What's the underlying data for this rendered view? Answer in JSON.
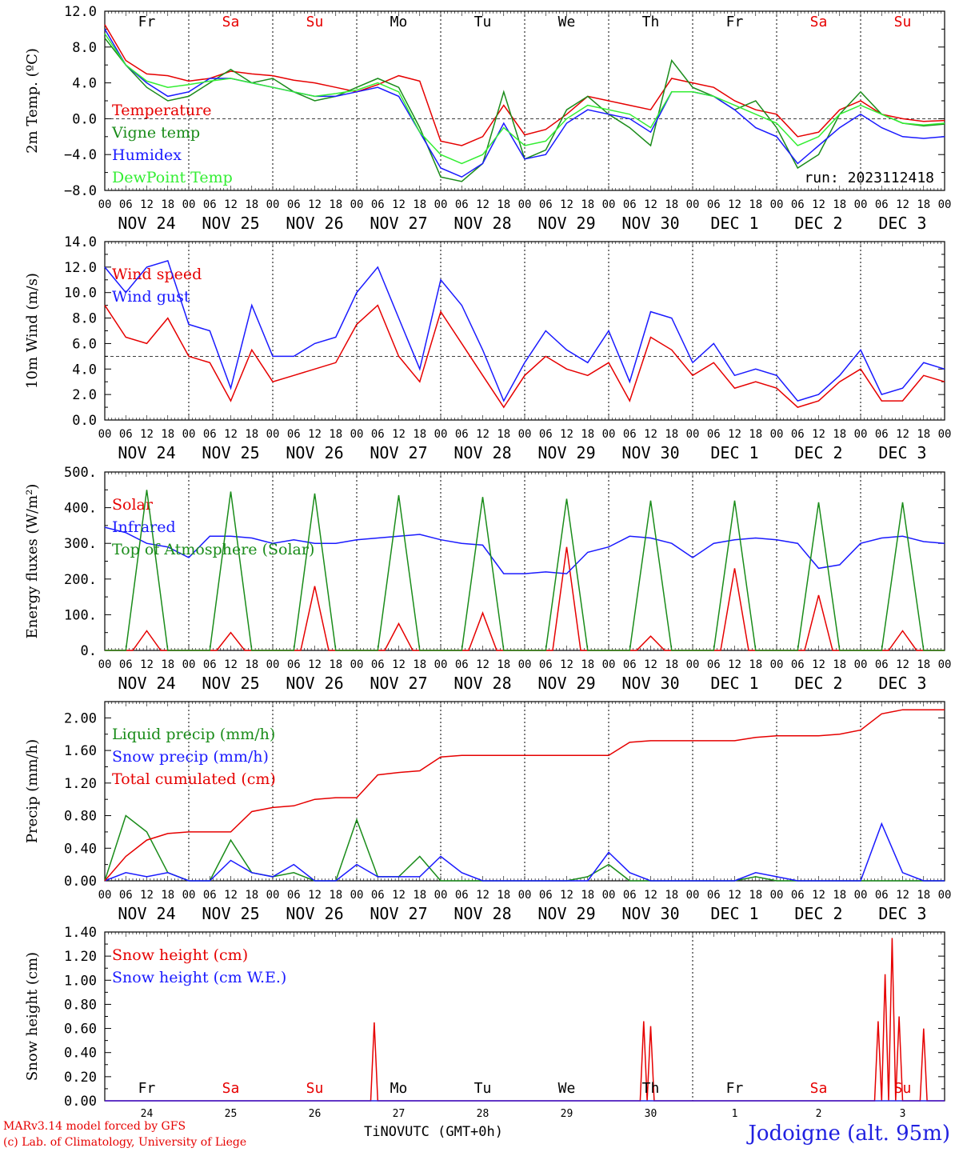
{
  "colors": {
    "red": "#e60000",
    "green": "#1a8c1a",
    "blue": "#1a1aff",
    "lightgreen": "#33ee33",
    "grid": "#000000"
  },
  "hour_ticks": [
    "00",
    "06",
    "12",
    "18"
  ],
  "date_labels": [
    "NOV 24",
    "NOV 25",
    "NOV 26",
    "NOV 27",
    "NOV 28",
    "NOV 29",
    "NOV 30",
    "DEC  1",
    "DEC  2",
    "DEC  3"
  ],
  "day_abbrev": [
    {
      "label": "Fr",
      "weekend": false
    },
    {
      "label": "Sa",
      "weekend": true
    },
    {
      "label": "Su",
      "weekend": true
    },
    {
      "label": "Mo",
      "weekend": false
    },
    {
      "label": "Tu",
      "weekend": false
    },
    {
      "label": "We",
      "weekend": false
    },
    {
      "label": "Th",
      "weekend": false
    },
    {
      "label": "Fr",
      "weekend": false
    },
    {
      "label": "Sa",
      "weekend": true
    },
    {
      "label": "Su",
      "weekend": true
    }
  ],
  "bottom_day_numbers": [
    "24",
    "25",
    "26",
    "27",
    "28",
    "29",
    "30",
    "1",
    "2",
    "3"
  ],
  "footer": {
    "model": "MARv3.14 model forced by GFS",
    "lab": "(c) Lab. of Climatology, University of Liege",
    "axis_title": "TiNOVUTC (GMT+0h)",
    "location": "Jodoigne (alt. 95m)"
  },
  "chart_data": [
    {
      "type": "line",
      "ylabel": "2m Temp. (ºC)",
      "ylim": [
        -8,
        12
      ],
      "yticks": [
        "12.0",
        "8.0",
        "4.0",
        "0.0",
        "−4.0",
        "−8.0"
      ],
      "ytick_values": [
        12,
        8,
        4,
        0,
        -4,
        -8
      ],
      "reference_line": 0,
      "annotation": "run: 2023112418",
      "x_hours": [
        0,
        6,
        12,
        18,
        24,
        30,
        36,
        42,
        48,
        54,
        60,
        66,
        72,
        78,
        84,
        90,
        96,
        102,
        108,
        114,
        120,
        126,
        132,
        138,
        144,
        150,
        156,
        162,
        168,
        174,
        180,
        186,
        192,
        198,
        204,
        210,
        216,
        222,
        228,
        234,
        240
      ],
      "series": [
        {
          "name": "Temperature",
          "color": "red",
          "values": [
            10.5,
            6.5,
            5.0,
            4.8,
            4.2,
            4.5,
            5.3,
            5.0,
            4.8,
            4.3,
            4.0,
            3.5,
            3.0,
            3.8,
            4.8,
            4.2,
            -2.5,
            -3.0,
            -2.0,
            1.5,
            -1.8,
            -1.2,
            0.5,
            2.5,
            2.0,
            1.5,
            1.0,
            4.5,
            4.0,
            3.5,
            2.0,
            1.0,
            0.5,
            -2.0,
            -1.5,
            1.0,
            2.0,
            0.5,
            0.0,
            -0.3,
            -0.2
          ]
        },
        {
          "name": "Vigne temp",
          "color": "green",
          "values": [
            9.0,
            6.0,
            3.5,
            2.0,
            2.5,
            4.0,
            5.5,
            4.0,
            4.5,
            3.0,
            2.0,
            2.5,
            3.5,
            4.5,
            3.5,
            -1.0,
            -6.5,
            -7.0,
            -5.0,
            3.0,
            -4.5,
            -3.5,
            1.0,
            2.5,
            0.5,
            -1.0,
            -3.0,
            6.5,
            3.5,
            2.5,
            1.0,
            2.0,
            -1.0,
            -5.5,
            -4.0,
            0.5,
            3.0,
            0.5,
            -0.5,
            -0.8,
            -0.6
          ]
        },
        {
          "name": "Humidex",
          "color": "blue",
          "values": [
            10.0,
            6.0,
            4.0,
            2.5,
            3.0,
            4.5,
            4.5,
            4.0,
            3.5,
            3.0,
            2.5,
            2.5,
            3.0,
            3.5,
            2.5,
            -1.5,
            -5.5,
            -6.5,
            -5.0,
            -0.5,
            -4.5,
            -4.0,
            -0.5,
            1.0,
            0.5,
            0.0,
            -1.5,
            3.0,
            3.0,
            2.5,
            1.0,
            -1.0,
            -2.0,
            -5.0,
            -3.0,
            -1.0,
            0.5,
            -1.0,
            -2.0,
            -2.2,
            -2.0
          ]
        },
        {
          "name": "DewPoint Temp",
          "color": "lightgreen",
          "values": [
            9.5,
            6.0,
            4.2,
            3.5,
            3.8,
            4.2,
            4.5,
            4.0,
            3.5,
            3.0,
            2.5,
            2.8,
            3.2,
            4.0,
            3.0,
            -1.5,
            -4.0,
            -5.0,
            -4.0,
            -1.0,
            -3.0,
            -2.5,
            0.0,
            1.5,
            1.0,
            0.5,
            -1.0,
            3.0,
            3.0,
            2.5,
            1.5,
            0.5,
            -0.5,
            -3.0,
            -2.0,
            0.5,
            1.5,
            0.5,
            -0.5,
            -0.7,
            -0.5
          ]
        }
      ]
    },
    {
      "type": "line",
      "ylabel": "10m Wind (m/s)",
      "ylim": [
        0,
        14
      ],
      "yticks": [
        "14.0",
        "12.0",
        "10.0",
        "8.0",
        "6.0",
        "4.0",
        "2.0",
        "0.0"
      ],
      "ytick_values": [
        14,
        12,
        10,
        8,
        6,
        4,
        2,
        0
      ],
      "reference_line": 5,
      "x_hours": [
        0,
        6,
        12,
        18,
        24,
        30,
        36,
        42,
        48,
        54,
        60,
        66,
        72,
        78,
        84,
        90,
        96,
        102,
        108,
        114,
        120,
        126,
        132,
        138,
        144,
        150,
        156,
        162,
        168,
        174,
        180,
        186,
        192,
        198,
        204,
        210,
        216,
        222,
        228,
        234,
        240
      ],
      "series": [
        {
          "name": "Wind speed",
          "color": "red",
          "values": [
            9.0,
            6.5,
            6.0,
            8.0,
            5.0,
            4.5,
            1.5,
            5.5,
            3.0,
            3.5,
            4.0,
            4.5,
            7.5,
            9.0,
            5.0,
            3.0,
            8.5,
            6.0,
            3.5,
            1.0,
            3.5,
            5.0,
            4.0,
            3.5,
            4.5,
            1.5,
            6.5,
            5.5,
            3.5,
            4.5,
            2.5,
            3.0,
            2.5,
            1.0,
            1.5,
            3.0,
            4.0,
            1.5,
            1.5,
            3.5,
            3.0
          ]
        },
        {
          "name": "Wind gust",
          "color": "blue",
          "values": [
            12.0,
            10.0,
            12.0,
            12.5,
            7.5,
            7.0,
            2.5,
            9.0,
            5.0,
            5.0,
            6.0,
            6.5,
            10.0,
            12.0,
            8.0,
            4.0,
            11.0,
            9.0,
            5.5,
            1.5,
            4.5,
            7.0,
            5.5,
            4.5,
            7.0,
            3.0,
            8.5,
            8.0,
            4.5,
            6.0,
            3.5,
            4.0,
            3.5,
            1.5,
            2.0,
            3.5,
            5.5,
            2.0,
            2.5,
            4.5,
            4.0
          ]
        }
      ]
    },
    {
      "type": "line",
      "ylabel": "Energy fluxes (W/m²)",
      "ylim": [
        0,
        500
      ],
      "yticks": [
        "500.",
        "400.",
        "300.",
        "200.",
        "100.",
        "0."
      ],
      "ytick_values": [
        500,
        400,
        300,
        200,
        100,
        0
      ],
      "x_hours": [
        0,
        6,
        12,
        18,
        24,
        30,
        36,
        42,
        48,
        54,
        60,
        66,
        72,
        78,
        84,
        90,
        96,
        102,
        108,
        114,
        120,
        126,
        132,
        138,
        144,
        150,
        156,
        162,
        168,
        174,
        180,
        186,
        192,
        198,
        204,
        210,
        216,
        222,
        228,
        234,
        240
      ],
      "series": [
        {
          "name": "Solar",
          "color": "red",
          "peaks": [
            55,
            50,
            180,
            75,
            105,
            290,
            40,
            230,
            155,
            55
          ],
          "peak_hour": 12
        },
        {
          "name": "Infrared",
          "color": "blue",
          "values": [
            345,
            330,
            300,
            290,
            260,
            320,
            320,
            315,
            300,
            310,
            300,
            300,
            310,
            315,
            320,
            325,
            310,
            300,
            295,
            215,
            215,
            220,
            215,
            275,
            290,
            320,
            315,
            300,
            260,
            300,
            310,
            315,
            310,
            300,
            230,
            240,
            300,
            315,
            320,
            305,
            300
          ]
        },
        {
          "name": "Top of Atmosphere (Solar)",
          "color": "green",
          "peaks": [
            450,
            445,
            440,
            435,
            430,
            425,
            420,
            420,
            415,
            415
          ],
          "peak_hour": 12
        }
      ]
    },
    {
      "type": "line",
      "ylabel": "Precip (mm/h)",
      "ylim": [
        0,
        2.2
      ],
      "yticks": [
        "2.00",
        "1.60",
        "1.20",
        "0.80",
        "0.40",
        "0.00"
      ],
      "ytick_values": [
        2.0,
        1.6,
        1.2,
        0.8,
        0.4,
        0.0
      ],
      "x_hours": [
        0,
        6,
        12,
        18,
        24,
        30,
        36,
        42,
        48,
        54,
        60,
        66,
        72,
        78,
        84,
        90,
        96,
        102,
        108,
        114,
        120,
        126,
        132,
        138,
        144,
        150,
        156,
        162,
        168,
        174,
        180,
        186,
        192,
        198,
        204,
        210,
        216,
        222,
        228,
        234,
        240
      ],
      "series": [
        {
          "name": "Liquid precip (mm/h)",
          "color": "green",
          "values": [
            0.0,
            0.8,
            0.6,
            0.1,
            0.0,
            0.0,
            0.5,
            0.1,
            0.05,
            0.1,
            0.0,
            0.0,
            0.75,
            0.05,
            0.05,
            0.3,
            0.0,
            0.0,
            0.0,
            0.0,
            0.0,
            0.0,
            0.0,
            0.05,
            0.2,
            0.0,
            0.0,
            0.0,
            0.0,
            0.0,
            0.0,
            0.05,
            0.0,
            0.0,
            0.0,
            0.0,
            0.0,
            0.0,
            0.0,
            0.0,
            0.0
          ]
        },
        {
          "name": "Snow precip (mm/h)",
          "color": "blue",
          "values": [
            0.0,
            0.1,
            0.05,
            0.1,
            0.0,
            0.0,
            0.25,
            0.1,
            0.05,
            0.2,
            0.0,
            0.0,
            0.2,
            0.05,
            0.05,
            0.05,
            0.3,
            0.1,
            0.0,
            0.0,
            0.0,
            0.0,
            0.0,
            0.0,
            0.35,
            0.1,
            0.0,
            0.0,
            0.0,
            0.0,
            0.0,
            0.1,
            0.05,
            0.0,
            0.0,
            0.0,
            0.0,
            0.7,
            0.1,
            0.0,
            0.0
          ]
        },
        {
          "name": "Total cumulated (cm)",
          "color": "red",
          "values": [
            0.0,
            0.3,
            0.5,
            0.58,
            0.6,
            0.6,
            0.6,
            0.85,
            0.9,
            0.92,
            1.0,
            1.02,
            1.02,
            1.3,
            1.33,
            1.35,
            1.52,
            1.54,
            1.54,
            1.54,
            1.54,
            1.54,
            1.54,
            1.54,
            1.54,
            1.7,
            1.72,
            1.72,
            1.72,
            1.72,
            1.72,
            1.76,
            1.78,
            1.78,
            1.78,
            1.8,
            1.85,
            2.05,
            2.1,
            2.1,
            2.1
          ]
        }
      ]
    },
    {
      "type": "line",
      "ylabel": "Snow height (cm)",
      "ylim": [
        0,
        1.4
      ],
      "yticks": [
        "1.40",
        "1.20",
        "1.00",
        "0.80",
        "0.60",
        "0.40",
        "0.20",
        "0.00"
      ],
      "ytick_values": [
        1.4,
        1.2,
        1.0,
        0.8,
        0.6,
        0.4,
        0.2,
        0.0
      ],
      "x_hours": [
        0,
        6,
        12,
        18,
        24,
        30,
        36,
        42,
        48,
        54,
        60,
        66,
        72,
        78,
        84,
        90,
        96,
        102,
        108,
        114,
        120,
        126,
        132,
        138,
        144,
        150,
        156,
        162,
        168,
        174,
        180,
        186,
        192,
        198,
        204,
        210,
        216,
        222,
        228,
        234,
        240
      ],
      "series": [
        {
          "name": "Snow height (cm)",
          "color": "red",
          "spikes": [
            [
              77,
              0.65
            ],
            [
              154,
              0.66
            ],
            [
              156,
              0.62
            ],
            [
              221,
              0.66
            ],
            [
              223,
              1.05
            ],
            [
              225,
              1.35
            ],
            [
              227,
              0.7
            ],
            [
              234,
              0.6
            ]
          ]
        },
        {
          "name": "Snow height (cm W.E.)",
          "color": "blue",
          "values": []
        }
      ]
    }
  ]
}
